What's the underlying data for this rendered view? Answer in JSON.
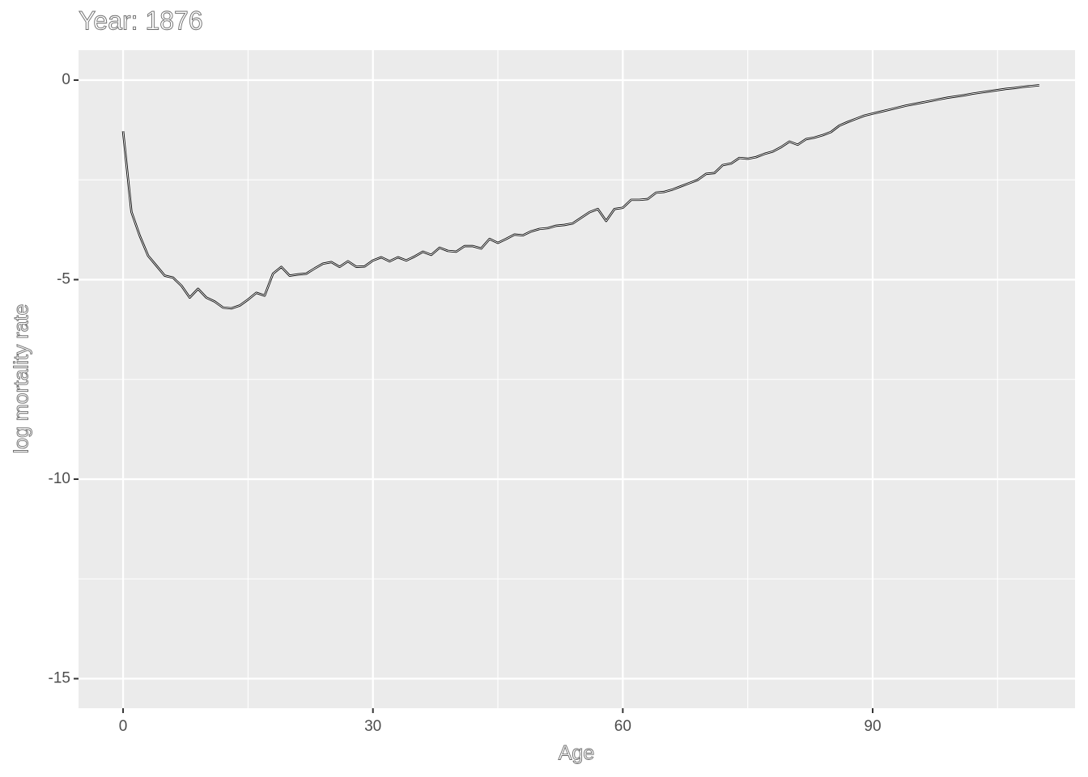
{
  "chart_data": {
    "type": "line",
    "title": "Year: 1876",
    "x_label": "Age",
    "y_label": "log mortality rate",
    "x": [
      0,
      1,
      2,
      3,
      4,
      5,
      6,
      7,
      8,
      9,
      10,
      11,
      12,
      13,
      14,
      15,
      16,
      17,
      18,
      19,
      20,
      21,
      22,
      23,
      24,
      25,
      26,
      27,
      28,
      29,
      30,
      31,
      32,
      33,
      34,
      35,
      36,
      37,
      38,
      39,
      40,
      41,
      42,
      43,
      44,
      45,
      46,
      47,
      48,
      49,
      50,
      51,
      52,
      53,
      54,
      55,
      56,
      57,
      58,
      59,
      60,
      61,
      62,
      63,
      64,
      65,
      66,
      67,
      68,
      69,
      70,
      71,
      72,
      73,
      74,
      75,
      76,
      77,
      78,
      79,
      80,
      81,
      82,
      83,
      84,
      85,
      86,
      87,
      88,
      89,
      90,
      91,
      92,
      93,
      94,
      95,
      96,
      97,
      98,
      99,
      100,
      101,
      102,
      103,
      104,
      105,
      106,
      107,
      108,
      109,
      110
    ],
    "values": [
      -1.28,
      -3.3,
      -3.9,
      -4.4,
      -4.65,
      -4.9,
      -4.95,
      -5.15,
      -5.45,
      -5.23,
      -5.45,
      -5.55,
      -5.7,
      -5.72,
      -5.65,
      -5.5,
      -5.33,
      -5.4,
      -4.85,
      -4.68,
      -4.9,
      -4.87,
      -4.85,
      -4.72,
      -4.6,
      -4.56,
      -4.68,
      -4.54,
      -4.68,
      -4.67,
      -4.52,
      -4.44,
      -4.54,
      -4.44,
      -4.52,
      -4.42,
      -4.3,
      -4.38,
      -4.2,
      -4.28,
      -4.3,
      -4.16,
      -4.16,
      -4.22,
      -3.98,
      -4.08,
      -3.98,
      -3.87,
      -3.89,
      -3.79,
      -3.73,
      -3.71,
      -3.65,
      -3.63,
      -3.59,
      -3.45,
      -3.31,
      -3.23,
      -3.53,
      -3.23,
      -3.2,
      -3.0,
      -3.0,
      -2.98,
      -2.82,
      -2.8,
      -2.74,
      -2.66,
      -2.58,
      -2.5,
      -2.35,
      -2.33,
      -2.13,
      -2.09,
      -1.95,
      -1.97,
      -1.93,
      -1.85,
      -1.79,
      -1.68,
      -1.54,
      -1.62,
      -1.48,
      -1.44,
      -1.38,
      -1.3,
      -1.14,
      -1.05,
      -0.97,
      -0.89,
      -0.84,
      -0.79,
      -0.74,
      -0.69,
      -0.64,
      -0.6,
      -0.56,
      -0.52,
      -0.48,
      -0.44,
      -0.41,
      -0.38,
      -0.34,
      -0.31,
      -0.28,
      -0.25,
      -0.22,
      -0.2,
      -0.17,
      -0.15,
      -0.13
    ],
    "color": "#000000",
    "xlim": [
      -5.35,
      114.3
    ],
    "ylim": [
      -15.74,
      0.75
    ],
    "xticks": [
      0,
      30,
      60,
      90
    ],
    "yticks": [
      -15,
      -10,
      -5,
      0
    ],
    "grid": true
  }
}
